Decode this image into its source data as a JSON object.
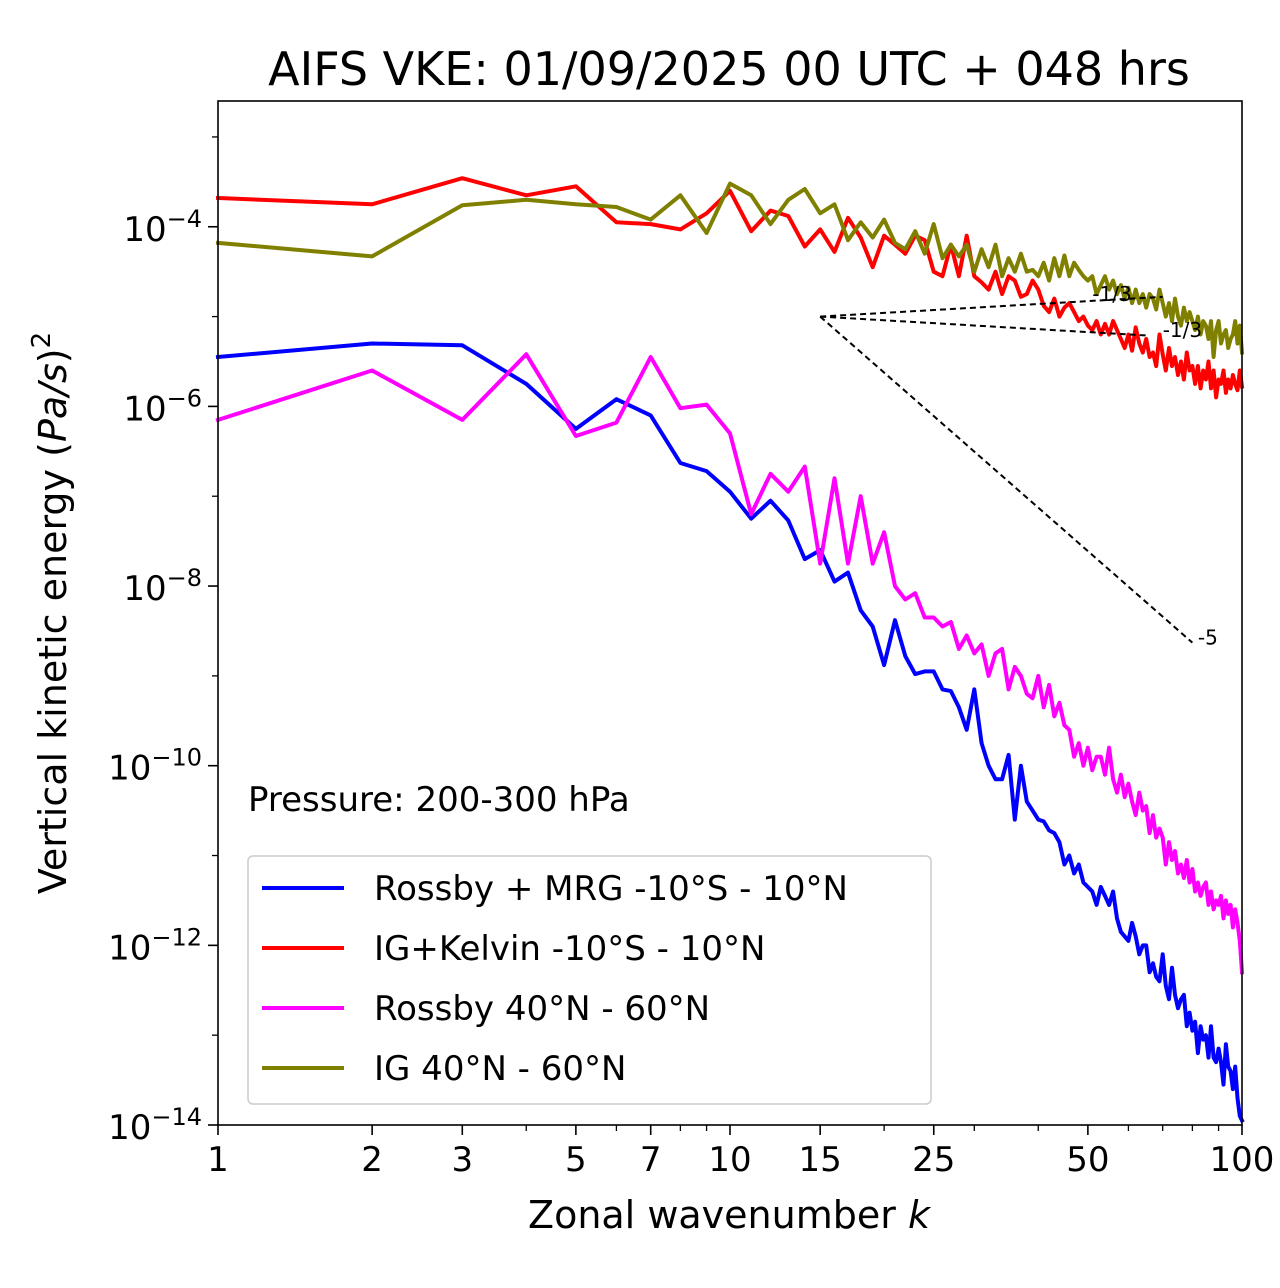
{
  "chart_data": {
    "type": "line",
    "title": "AIFS VKE: 01/09/2025 00 UTC + 048 hrs",
    "xlabel": "Zonal wavenumber k",
    "xlabel_prefix": "Zonal wavenumber ",
    "xlabel_var": "k",
    "ylabel": "Vertical kinetic energy (Pa/s)^2",
    "ylabel_prefix": "Vertical kinetic energy (",
    "ylabel_var": "Pa/s",
    "ylabel_suffix": ")",
    "ylabel_exp": "2",
    "x_scale": "log",
    "y_scale": "log",
    "xlim": [
      1,
      100
    ],
    "ylim_exp": [
      -14,
      -2.6
    ],
    "x_ticks": [
      {
        "value": 1,
        "label": "1"
      },
      {
        "value": 2,
        "label": "2"
      },
      {
        "value": 3,
        "label": "3"
      },
      {
        "value": 5,
        "label": "5"
      },
      {
        "value": 7,
        "label": "7"
      },
      {
        "value": 10,
        "label": "10"
      },
      {
        "value": 15,
        "label": "15"
      },
      {
        "value": 25,
        "label": "25"
      },
      {
        "value": 50,
        "label": "50"
      },
      {
        "value": 100,
        "label": "100"
      }
    ],
    "y_ticks": [
      {
        "exp": -4,
        "base": "10",
        "sup": "−4"
      },
      {
        "exp": -6,
        "base": "10",
        "sup": "−6"
      },
      {
        "exp": -8,
        "base": "10",
        "sup": "−8"
      },
      {
        "exp": -10,
        "base": "10",
        "sup": "−10"
      },
      {
        "exp": -12,
        "base": "10",
        "sup": "−12"
      },
      {
        "exp": -14,
        "base": "10",
        "sup": "−14"
      }
    ],
    "annotation": "Pressure: 200-300 hPa",
    "legend_position": "lower-left",
    "series": [
      {
        "name": "Rossby + MRG -10°S - 10°N",
        "color": "#0000ff",
        "x": [
          1,
          2,
          3,
          4,
          5,
          6,
          7,
          8,
          9,
          10,
          11,
          12,
          13,
          14,
          15,
          16,
          17,
          18,
          19,
          20,
          21,
          22,
          23,
          24,
          25,
          26,
          27,
          28,
          29,
          30,
          31,
          32,
          33,
          34,
          35,
          36,
          37,
          38,
          39,
          40,
          41,
          42,
          43,
          44,
          45,
          46,
          47,
          48,
          49,
          50,
          51,
          52,
          53,
          54,
          55,
          56,
          57,
          58,
          59,
          60,
          61,
          62,
          63,
          64,
          65,
          66,
          67,
          68,
          69,
          70,
          71,
          72,
          73,
          74,
          75,
          76,
          77,
          78,
          79,
          80,
          81,
          82,
          83,
          84,
          85,
          86,
          87,
          88,
          89,
          90,
          91,
          92,
          93,
          94,
          95,
          96,
          97,
          98,
          99,
          100
        ],
        "log10_y": [
          -5.45,
          -5.3,
          -5.32,
          -5.75,
          -6.25,
          -5.92,
          -6.1,
          -6.63,
          -6.72,
          -6.95,
          -7.25,
          -7.05,
          -7.27,
          -7.7,
          -7.6,
          -7.95,
          -7.85,
          -8.27,
          -8.45,
          -8.88,
          -8.38,
          -8.78,
          -8.98,
          -8.95,
          -8.95,
          -9.15,
          -9.17,
          -9.35,
          -9.6,
          -9.15,
          -9.75,
          -10.0,
          -10.15,
          -10.15,
          -9.88,
          -10.6,
          -10.0,
          -10.4,
          -10.5,
          -10.6,
          -10.62,
          -10.72,
          -10.75,
          -10.85,
          -11.1,
          -11.0,
          -11.2,
          -11.1,
          -11.3,
          -11.35,
          -11.4,
          -11.55,
          -11.35,
          -11.45,
          -11.55,
          -11.4,
          -11.7,
          -11.85,
          -11.9,
          -11.95,
          -11.75,
          -11.9,
          -12.1,
          -12.0,
          -12.0,
          -12.3,
          -12.2,
          -12.35,
          -12.4,
          -12.1,
          -12.45,
          -12.6,
          -12.25,
          -12.55,
          -12.7,
          -12.6,
          -12.55,
          -12.9,
          -12.75,
          -12.95,
          -12.85,
          -13.2,
          -12.9,
          -13.05,
          -13.0,
          -13.25,
          -12.9,
          -13.25,
          -13.3,
          -13.15,
          -13.3,
          -13.55,
          -13.1,
          -13.35,
          -13.4,
          -13.6,
          -13.35,
          -13.7,
          -13.9,
          -13.95
        ]
      },
      {
        "name": "IG+Kelvin -10°S - 10°N",
        "color": "#ff0000",
        "x": [
          1,
          2,
          3,
          4,
          5,
          6,
          7,
          8,
          9,
          10,
          11,
          12,
          13,
          14,
          15,
          16,
          17,
          18,
          19,
          20,
          21,
          22,
          23,
          24,
          25,
          26,
          27,
          28,
          29,
          30,
          31,
          32,
          33,
          34,
          35,
          36,
          37,
          38,
          39,
          40,
          41,
          42,
          43,
          44,
          45,
          46,
          47,
          48,
          49,
          50,
          51,
          52,
          53,
          54,
          55,
          56,
          57,
          58,
          59,
          60,
          61,
          62,
          63,
          64,
          65,
          66,
          67,
          68,
          69,
          70,
          71,
          72,
          73,
          74,
          75,
          76,
          77,
          78,
          79,
          80,
          81,
          82,
          83,
          84,
          85,
          86,
          87,
          88,
          89,
          90,
          91,
          92,
          93,
          94,
          95,
          96,
          97,
          98,
          99,
          100
        ],
        "log10_y": [
          -3.68,
          -3.75,
          -3.46,
          -3.65,
          -3.55,
          -3.95,
          -3.97,
          -4.03,
          -3.85,
          -3.6,
          -4.05,
          -3.82,
          -3.88,
          -4.22,
          -4.03,
          -4.28,
          -3.9,
          -4.12,
          -4.45,
          -4.1,
          -4.2,
          -4.3,
          -4.1,
          -4.15,
          -4.5,
          -4.55,
          -4.2,
          -4.55,
          -4.1,
          -4.55,
          -4.62,
          -4.7,
          -4.5,
          -4.75,
          -4.55,
          -4.6,
          -4.78,
          -4.75,
          -4.6,
          -4.7,
          -4.88,
          -4.95,
          -4.8,
          -5.0,
          -4.9,
          -4.85,
          -4.95,
          -5.05,
          -5.0,
          -5.1,
          -5.15,
          -5.05,
          -5.2,
          -5.08,
          -5.2,
          -5.05,
          -5.15,
          -5.25,
          -5.35,
          -5.2,
          -5.38,
          -5.12,
          -5.3,
          -5.4,
          -5.25,
          -5.45,
          -5.4,
          -5.55,
          -5.2,
          -5.42,
          -5.6,
          -5.35,
          -5.55,
          -5.45,
          -5.65,
          -5.5,
          -5.7,
          -5.4,
          -5.6,
          -5.55,
          -5.75,
          -5.55,
          -5.8,
          -5.6,
          -5.7,
          -5.5,
          -5.8,
          -5.6,
          -5.9,
          -5.7,
          -5.75,
          -5.6,
          -5.85,
          -5.7,
          -5.8,
          -5.65,
          -5.75,
          -5.82,
          -5.6,
          -5.78
        ]
      },
      {
        "name": "Rossby 40°N - 60°N",
        "color": "#ff00ff",
        "x": [
          1,
          2,
          3,
          4,
          5,
          6,
          7,
          8,
          9,
          10,
          11,
          12,
          13,
          14,
          15,
          16,
          17,
          18,
          19,
          20,
          21,
          22,
          23,
          24,
          25,
          26,
          27,
          28,
          29,
          30,
          31,
          32,
          33,
          34,
          35,
          36,
          37,
          38,
          39,
          40,
          41,
          42,
          43,
          44,
          45,
          46,
          47,
          48,
          49,
          50,
          51,
          52,
          53,
          54,
          55,
          56,
          57,
          58,
          59,
          60,
          61,
          62,
          63,
          64,
          65,
          66,
          67,
          68,
          69,
          70,
          71,
          72,
          73,
          74,
          75,
          76,
          77,
          78,
          79,
          80,
          81,
          82,
          83,
          84,
          85,
          86,
          87,
          88,
          89,
          90,
          91,
          92,
          93,
          94,
          95,
          96,
          97,
          98,
          99,
          100
        ],
        "log10_y": [
          -6.15,
          -5.6,
          -6.15,
          -5.42,
          -6.33,
          -6.18,
          -5.45,
          -6.02,
          -5.98,
          -6.3,
          -7.2,
          -6.75,
          -6.95,
          -6.67,
          -7.75,
          -6.8,
          -7.75,
          -7.0,
          -7.75,
          -7.4,
          -8.0,
          -8.15,
          -8.08,
          -8.35,
          -8.35,
          -8.45,
          -8.4,
          -8.7,
          -8.55,
          -8.75,
          -8.65,
          -9.0,
          -8.75,
          -8.7,
          -9.15,
          -8.9,
          -9.0,
          -9.2,
          -9.25,
          -9.0,
          -9.35,
          -9.1,
          -9.45,
          -9.3,
          -9.55,
          -9.6,
          -9.9,
          -9.75,
          -10.0,
          -9.8,
          -10.05,
          -9.9,
          -9.9,
          -10.1,
          -9.8,
          -10.15,
          -10.3,
          -10.1,
          -10.35,
          -10.2,
          -10.4,
          -10.55,
          -10.3,
          -10.5,
          -10.45,
          -10.75,
          -10.55,
          -10.8,
          -10.7,
          -10.8,
          -11.1,
          -10.85,
          -11.05,
          -10.95,
          -11.2,
          -11.1,
          -11.25,
          -11.05,
          -11.3,
          -11.15,
          -11.4,
          -11.3,
          -11.45,
          -11.35,
          -11.3,
          -11.55,
          -11.4,
          -11.6,
          -11.5,
          -11.55,
          -11.45,
          -11.7,
          -11.5,
          -11.65,
          -11.55,
          -11.8,
          -11.6,
          -11.75,
          -11.95,
          -12.3
        ]
      },
      {
        "name": "IG 40°N - 60°N",
        "color": "#808000",
        "x": [
          1,
          2,
          3,
          4,
          5,
          6,
          7,
          8,
          9,
          10,
          11,
          12,
          13,
          14,
          15,
          16,
          17,
          18,
          19,
          20,
          21,
          22,
          23,
          24,
          25,
          26,
          27,
          28,
          29,
          30,
          31,
          32,
          33,
          34,
          35,
          36,
          37,
          38,
          39,
          40,
          41,
          42,
          43,
          44,
          45,
          46,
          47,
          48,
          49,
          50,
          51,
          52,
          53,
          54,
          55,
          56,
          57,
          58,
          59,
          60,
          61,
          62,
          63,
          64,
          65,
          66,
          67,
          68,
          69,
          70,
          71,
          72,
          73,
          74,
          75,
          76,
          77,
          78,
          79,
          80,
          81,
          82,
          83,
          84,
          85,
          86,
          87,
          88,
          89,
          90,
          91,
          92,
          93,
          94,
          95,
          96,
          97,
          98,
          99,
          100
        ],
        "log10_y": [
          -4.18,
          -4.33,
          -3.76,
          -3.7,
          -3.75,
          -3.78,
          -3.92,
          -3.65,
          -4.07,
          -3.52,
          -3.65,
          -3.97,
          -3.7,
          -3.58,
          -3.85,
          -3.75,
          -4.15,
          -3.95,
          -4.12,
          -3.92,
          -4.18,
          -4.25,
          -4.05,
          -4.3,
          -3.97,
          -4.35,
          -4.2,
          -4.33,
          -4.2,
          -4.5,
          -4.25,
          -4.45,
          -4.2,
          -4.55,
          -4.35,
          -4.5,
          -4.3,
          -4.5,
          -4.48,
          -4.55,
          -4.4,
          -4.6,
          -4.35,
          -4.55,
          -4.32,
          -4.55,
          -4.4,
          -4.48,
          -4.55,
          -4.6,
          -4.55,
          -4.75,
          -4.65,
          -4.55,
          -4.7,
          -4.6,
          -4.75,
          -4.65,
          -4.8,
          -4.68,
          -4.85,
          -4.7,
          -4.85,
          -4.75,
          -4.9,
          -4.75,
          -4.8,
          -4.92,
          -4.7,
          -4.85,
          -5.0,
          -4.85,
          -5.05,
          -4.8,
          -5.0,
          -5.1,
          -4.9,
          -5.05,
          -4.95,
          -5.05,
          -5.15,
          -5.0,
          -5.2,
          -5.05,
          -5.1,
          -5.25,
          -5.05,
          -5.45,
          -5.15,
          -5.05,
          -5.3,
          -5.2,
          -5.15,
          -5.35,
          -5.25,
          -5.2,
          -5.05,
          -5.3,
          -5.1,
          -5.4
        ]
      }
    ],
    "reference_lines": [
      {
        "label": "-1/3",
        "x0": 15,
        "y0_exp": -5.0,
        "x1": 70,
        "y1_exp": -4.78,
        "label_x": 51,
        "label_y_exp": -4.75
      },
      {
        "label": "-1/3",
        "x0": 15,
        "y0_exp": -5.0,
        "x1": 65,
        "y1_exp": -5.21,
        "label_x": 70,
        "label_y_exp": -5.15
      },
      {
        "label": "-5",
        "x0": 15,
        "y0_exp": -5.0,
        "x1": 80,
        "y1_exp": -8.63,
        "label_x": 82,
        "label_y_exp": -8.57
      }
    ]
  }
}
